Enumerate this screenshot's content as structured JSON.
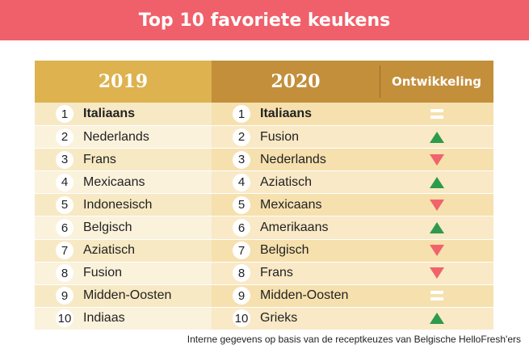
{
  "title": "Top 10 favoriete keukens",
  "footnote": "Interne gegevens op basis van de receptkeuzes van Belgische HelloFresh'ers",
  "colors": {
    "banner": "#f0606a",
    "header_2019": "#ddb24f",
    "header_2020": "#c38f3b",
    "up": "#2f9a4b",
    "down": "#f0636b",
    "equal": "#ffffff"
  },
  "chart_data": {
    "type": "table",
    "title": "Top 10 favoriete keukens",
    "columns": [
      "2019",
      "2020",
      "Ontwikkeling"
    ],
    "rows": [
      {
        "rank": "1",
        "y2019": "Italiaans",
        "y2020": "Italiaans",
        "trend": "equal",
        "trend_icon": "equal-icon"
      },
      {
        "rank": "2",
        "y2019": "Nederlands",
        "y2020": "Fusion",
        "trend": "up",
        "trend_icon": "triangle-up-icon"
      },
      {
        "rank": "3",
        "y2019": "Frans",
        "y2020": "Nederlands",
        "trend": "down",
        "trend_icon": "triangle-down-icon"
      },
      {
        "rank": "4",
        "y2019": "Mexicaans",
        "y2020": "Aziatisch",
        "trend": "up",
        "trend_icon": "triangle-up-icon"
      },
      {
        "rank": "5",
        "y2019": "Indonesisch",
        "y2020": "Mexicaans",
        "trend": "down",
        "trend_icon": "triangle-down-icon"
      },
      {
        "rank": "6",
        "y2019": "Belgisch",
        "y2020": "Amerikaans",
        "trend": "up",
        "trend_icon": "triangle-up-icon"
      },
      {
        "rank": "7",
        "y2019": "Aziatisch",
        "y2020": "Belgisch",
        "trend": "down",
        "trend_icon": "triangle-down-icon"
      },
      {
        "rank": "8",
        "y2019": "Fusion",
        "y2020": "Frans",
        "trend": "down",
        "trend_icon": "triangle-down-icon"
      },
      {
        "rank": "9",
        "y2019": "Midden-Oosten",
        "y2020": "Midden-Oosten",
        "trend": "equal",
        "trend_icon": "equal-icon"
      },
      {
        "rank": "10",
        "y2019": "Indiaas",
        "y2020": "Grieks",
        "trend": "up",
        "trend_icon": "triangle-up-icon"
      }
    ]
  }
}
